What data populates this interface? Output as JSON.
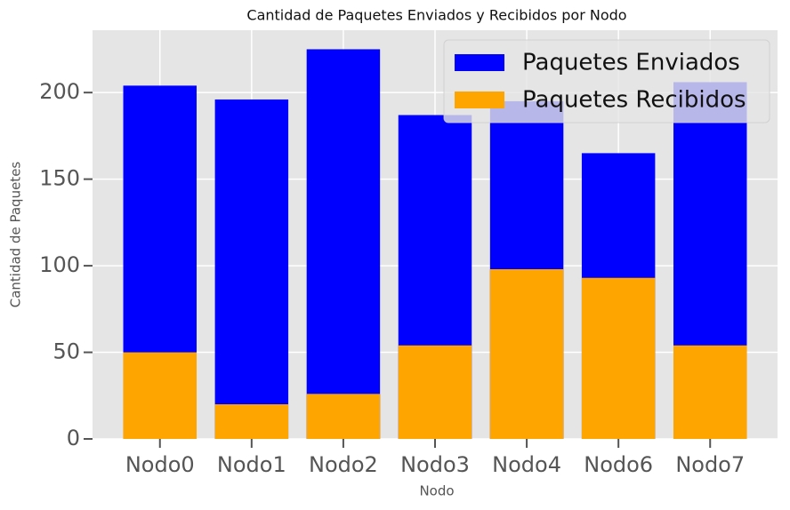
{
  "chart_data": {
    "type": "bar",
    "title": "Cantidad de Paquetes Enviados y Recibidos por Nodo",
    "xlabel": "Nodo",
    "ylabel": "Cantidad de Paquetes",
    "categories": [
      "Nodo0",
      "Nodo1",
      "Nodo2",
      "Nodo3",
      "Nodo4",
      "Nodo6",
      "Nodo7"
    ],
    "series": [
      {
        "name": "Paquetes Enviados",
        "color": "#0000ff",
        "values": [
          204,
          196,
          225,
          187,
          195,
          165,
          206
        ]
      },
      {
        "name": "Paquetes Recibidos",
        "color": "#ffa500",
        "values": [
          50,
          20,
          26,
          54,
          98,
          93,
          54
        ]
      }
    ],
    "ylim": [
      0,
      236
    ],
    "yticks": [
      0,
      50,
      100,
      150,
      200
    ],
    "grid": true,
    "legend": "upper right"
  }
}
